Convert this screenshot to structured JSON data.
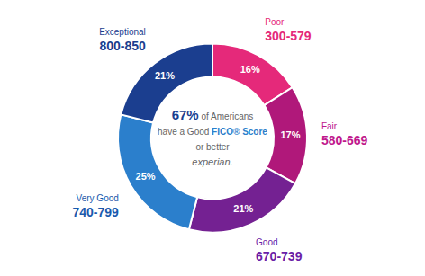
{
  "chart_data": {
    "type": "pie",
    "categories": [
      "Poor",
      "Fair",
      "Good",
      "Very Good",
      "Exceptional"
    ],
    "ranges": [
      "300-579",
      "580-669",
      "670-739",
      "740-799",
      "800-850"
    ],
    "values": [
      16,
      17,
      21,
      25,
      21
    ],
    "value_labels": [
      "16%",
      "17%",
      "21%",
      "25%",
      "21%"
    ],
    "data_labels": true,
    "colors": [
      "#E5297A",
      "#B0187A",
      "#742192",
      "#2B7FCC",
      "#1B3E8F"
    ],
    "label_colors": [
      "#E5297A",
      "#C0178C",
      "#6B1FA8",
      "#1A5AAD",
      "#1B3E8F"
    ],
    "annotations": [
      [
        {
          "text": "67%",
          "color": "#1B3E8F",
          "bold": true
        },
        {
          "text": " of Americans",
          "color": "#666666"
        }
      ],
      [
        {
          "text": "have a Good ",
          "color": "#666666"
        },
        {
          "text": "FICO",
          "color": "#2B7FCC",
          "bold": true
        },
        {
          "text": "® Score",
          "color": "#2B7FCC",
          "bold": true
        }
      ],
      [
        {
          "text": "or better",
          "color": "#666666"
        }
      ],
      [
        {
          "text": "experian.",
          "color": "#666666",
          "italic": true
        }
      ]
    ]
  }
}
